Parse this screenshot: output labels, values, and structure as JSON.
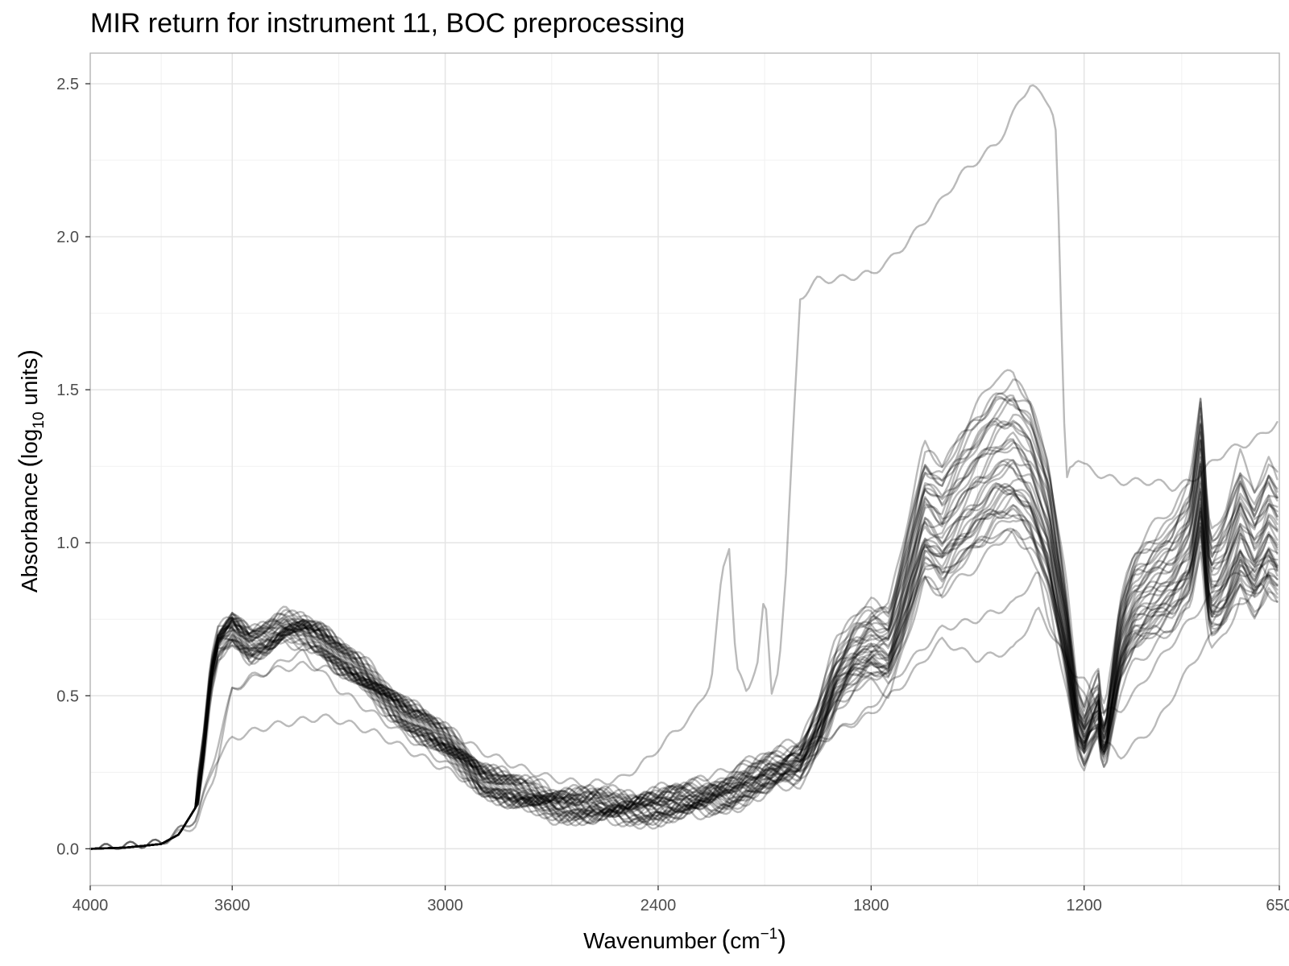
{
  "chart_data": {
    "type": "line",
    "title": "MIR return for instrument 11, BOC preprocessing",
    "xlabel": {
      "main": "Wavenumber",
      "open": "(",
      "unit": "cm",
      "sup": "−1",
      "close": ")"
    },
    "ylabel": {
      "main": "Absorbance",
      "open": "(",
      "log": "log",
      "sub": "10",
      "rest": " units",
      "close": ")"
    },
    "x_reversed": true,
    "xlim": [
      4000,
      650
    ],
    "ylim": [
      -0.12,
      2.6
    ],
    "x_ticks": [
      4000,
      3600,
      3000,
      2400,
      1800,
      1200,
      650
    ],
    "x_tick_labels": [
      "4000",
      "3600",
      "3000",
      "2400",
      "1800",
      "1200",
      "650"
    ],
    "x_minor_ticks": [
      3800,
      3300,
      2700,
      2100,
      1500,
      925
    ],
    "y_ticks": [
      0.0,
      0.5,
      1.0,
      1.5,
      2.0,
      2.5
    ],
    "y_tick_labels": [
      "0.0",
      "0.5",
      "1.0",
      "1.5",
      "2.0",
      "2.5"
    ],
    "y_minor_ticks": [
      0.25,
      0.75,
      1.25,
      1.75,
      2.25
    ],
    "grid": true,
    "legend": "none",
    "line_color": "#000000",
    "line_alpha": 0.27,
    "series_count": 40,
    "base_spectrum": {
      "x": [
        4000,
        3900,
        3800,
        3750,
        3700,
        3680,
        3660,
        3640,
        3620,
        3600,
        3550,
        3500,
        3450,
        3400,
        3350,
        3300,
        3200,
        3100,
        3000,
        2950,
        2900,
        2850,
        2800,
        2700,
        2600,
        2500,
        2400,
        2300,
        2200,
        2100,
        2000,
        1950,
        1900,
        1850,
        1800,
        1750,
        1700,
        1650,
        1600,
        1550,
        1500,
        1450,
        1400,
        1350,
        1300,
        1250,
        1220,
        1200,
        1180,
        1160,
        1150,
        1140,
        1120,
        1100,
        1080,
        1060,
        1040,
        1000,
        950,
        900,
        870,
        860,
        850,
        840,
        820,
        800,
        760,
        720,
        700,
        680,
        660,
        650
      ],
      "y": [
        0.0,
        0.005,
        0.02,
        0.06,
        0.18,
        0.42,
        0.72,
        0.86,
        0.9,
        0.93,
        0.85,
        0.87,
        0.92,
        0.92,
        0.88,
        0.8,
        0.68,
        0.55,
        0.44,
        0.38,
        0.3,
        0.26,
        0.23,
        0.19,
        0.17,
        0.16,
        0.165,
        0.18,
        0.21,
        0.26,
        0.31,
        0.42,
        0.58,
        0.66,
        0.7,
        0.68,
        0.88,
        1.1,
        1.04,
        1.13,
        1.2,
        1.26,
        1.28,
        1.22,
        1.05,
        0.7,
        0.42,
        0.36,
        0.42,
        0.46,
        0.36,
        0.35,
        0.5,
        0.66,
        0.74,
        0.8,
        0.82,
        0.86,
        0.9,
        1.0,
        1.25,
        1.05,
        0.9,
        0.86,
        0.88,
        0.92,
        1.05,
        0.96,
        1.0,
        1.05,
        1.02,
        1.0
      ]
    },
    "outlier_spectra": [
      {
        "x": [
          4000,
          3800,
          3700,
          3650,
          3600,
          3550,
          3500,
          3400,
          3300,
          3200,
          3100,
          3000,
          2900,
          2800,
          2700,
          2600,
          2500,
          2420,
          2400,
          2300,
          2250,
          2220,
          2200,
          2180,
          2150,
          2120,
          2100,
          2080,
          2070,
          2060,
          2040,
          2000,
          1950,
          1900,
          1800,
          1750,
          1700,
          1650,
          1600,
          1550,
          1500,
          1450,
          1420,
          1400,
          1380,
          1350,
          1330,
          1310,
          1300,
          1290,
          1280,
          1270,
          1260,
          1250,
          1240,
          1220,
          1200,
          1150,
          1100,
          1050,
          1000,
          950,
          900,
          850,
          800,
          750,
          700,
          650
        ],
        "y": [
          0.0,
          0.02,
          0.08,
          0.24,
          0.52,
          0.56,
          0.58,
          0.6,
          0.58,
          0.53,
          0.47,
          0.39,
          0.32,
          0.27,
          0.23,
          0.21,
          0.23,
          0.3,
          0.33,
          0.44,
          0.55,
          0.9,
          0.99,
          0.6,
          0.5,
          0.62,
          0.84,
          0.5,
          0.55,
          0.6,
          0.9,
          1.8,
          1.86,
          1.86,
          1.88,
          1.92,
          1.98,
          2.05,
          2.12,
          2.2,
          2.25,
          2.3,
          2.35,
          2.4,
          2.45,
          2.5,
          2.47,
          2.45,
          2.44,
          2.42,
          2.35,
          2.0,
          1.5,
          1.2,
          1.25,
          1.28,
          1.25,
          1.22,
          1.2,
          1.2,
          1.2,
          1.18,
          1.2,
          1.25,
          1.3,
          1.32,
          1.35,
          1.4
        ]
      },
      {
        "x": [
          4000,
          3800,
          3700,
          3650,
          3600,
          3550,
          3500,
          3400,
          3350,
          3300,
          3200,
          3100,
          3000,
          2900,
          2800,
          2700,
          2600,
          2500,
          2400,
          2300,
          2200,
          2100,
          2000,
          1950,
          1900,
          1850,
          1800,
          1700,
          1600,
          1500,
          1400,
          1330,
          1300,
          1250,
          1200,
          1150,
          1100,
          1050,
          1000,
          900,
          800,
          700,
          650
        ],
        "y": [
          0.0,
          0.02,
          0.1,
          0.28,
          0.36,
          0.38,
          0.4,
          0.42,
          0.43,
          0.42,
          0.38,
          0.32,
          0.26,
          0.2,
          0.17,
          0.14,
          0.13,
          0.13,
          0.14,
          0.16,
          0.2,
          0.26,
          0.31,
          0.34,
          0.38,
          0.42,
          0.46,
          0.6,
          0.72,
          0.75,
          0.8,
          0.9,
          0.75,
          0.6,
          0.55,
          0.45,
          0.45,
          0.52,
          0.6,
          0.75,
          0.88,
          0.92,
          0.85
        ]
      },
      {
        "x": [
          4000,
          3800,
          3700,
          3650,
          3600,
          3550,
          3500,
          3450,
          3400,
          3350,
          3300,
          3200,
          3100,
          3000,
          2900,
          2800,
          2700,
          2600,
          2500,
          2400,
          2300,
          2200,
          2100,
          2000,
          1900,
          1800,
          1700,
          1650,
          1600,
          1550,
          1500,
          1400,
          1330,
          1300,
          1250,
          1200,
          1150,
          1100,
          1000,
          900,
          800,
          700,
          650
        ],
        "y": [
          0.0,
          0.02,
          0.1,
          0.3,
          0.52,
          0.55,
          0.58,
          0.62,
          0.64,
          0.58,
          0.52,
          0.44,
          0.36,
          0.28,
          0.2,
          0.16,
          0.14,
          0.14,
          0.16,
          0.18,
          0.22,
          0.26,
          0.3,
          0.33,
          0.38,
          0.44,
          0.55,
          0.62,
          0.68,
          0.65,
          0.62,
          0.65,
          0.78,
          0.72,
          0.62,
          0.5,
          0.36,
          0.3,
          0.4,
          0.6,
          0.76,
          0.86,
          0.8
        ]
      }
    ]
  }
}
